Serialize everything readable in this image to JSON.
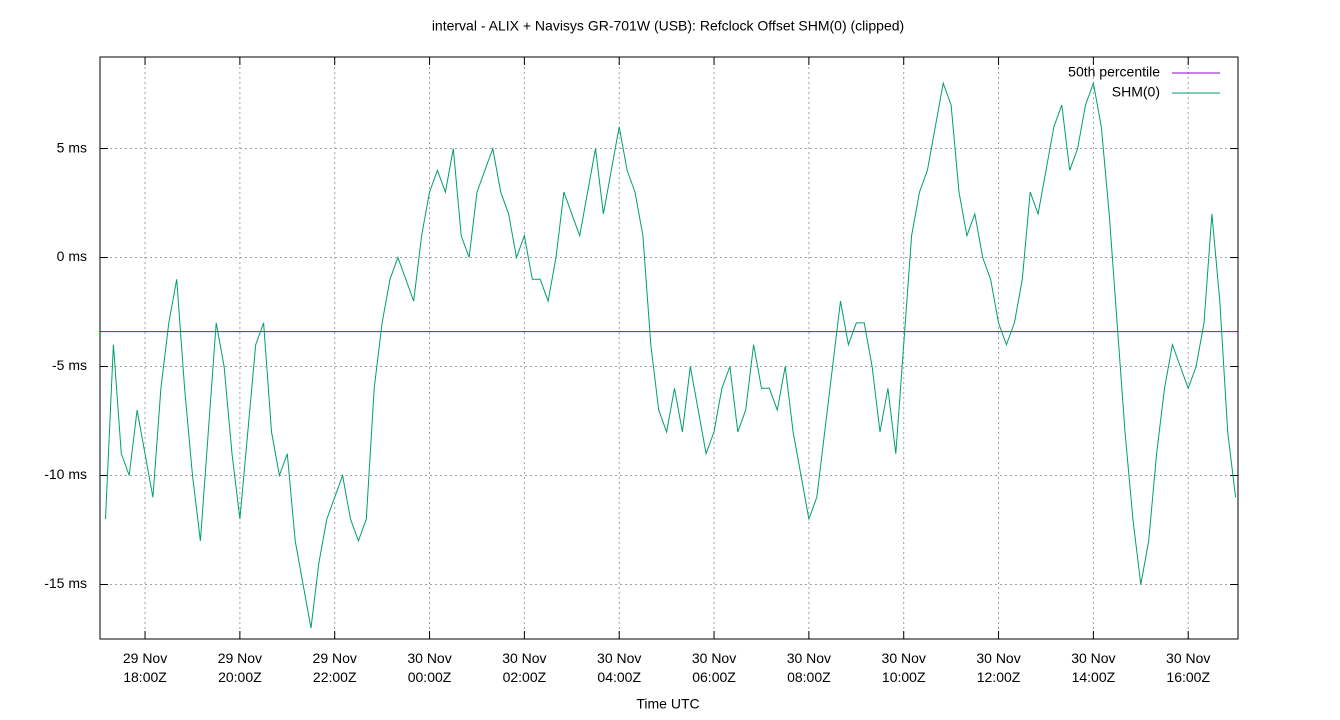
{
  "chart_data": {
    "type": "line",
    "title": "interval - ALIX + Navisys GR-701W (USB): Refclock Offset SHM(0) (clipped)",
    "x_label": "Time UTC",
    "xlim": [
      "29 Nov 17:03",
      "30 Nov 17:03"
    ],
    "xticks": [
      {
        "value": "29 Nov 18:00",
        "label": "29 Nov 18:00Z"
      },
      {
        "value": "29 Nov 20:00",
        "label": "29 Nov 20:00Z"
      },
      {
        "value": "29 Nov 22:00",
        "label": "29 Nov 22:00Z"
      },
      {
        "value": "30 Nov 00:00",
        "label": "30 Nov 00:00Z"
      },
      {
        "value": "30 Nov 02:00",
        "label": "30 Nov 02:00Z"
      },
      {
        "value": "30 Nov 04:00",
        "label": "30 Nov 04:00Z"
      },
      {
        "value": "30 Nov 06:00",
        "label": "30 Nov 06:00Z"
      },
      {
        "value": "30 Nov 08:00",
        "label": "30 Nov 08:00Z"
      },
      {
        "value": "30 Nov 10:00",
        "label": "30 Nov 10:00Z"
      },
      {
        "value": "30 Nov 12:00",
        "label": "30 Nov 12:00Z"
      },
      {
        "value": "30 Nov 14:00",
        "label": "30 Nov 14:00Z"
      },
      {
        "value": "30 Nov 16:00",
        "label": "30 Nov 16:00Z"
      }
    ],
    "ylim": [
      -17.5,
      9.2
    ],
    "yticks": [
      {
        "value": -15,
        "label": "-15 ms"
      },
      {
        "value": -10,
        "label": "-10 ms"
      },
      {
        "value": -5,
        "label": "-5 ms"
      },
      {
        "value": 0,
        "label": "0 ms"
      },
      {
        "value": 5,
        "label": "5 ms"
      }
    ],
    "grid": true,
    "legend": "top-right",
    "reference_line": {
      "name": "50th percentile",
      "color": "#9400d3",
      "value": -3.4
    },
    "x": [
      "29 Nov 17:10",
      "29 Nov 17:20",
      "29 Nov 17:30",
      "29 Nov 17:40",
      "29 Nov 17:50",
      "29 Nov 18:00",
      "29 Nov 18:10",
      "29 Nov 18:20",
      "29 Nov 18:30",
      "29 Nov 18:40",
      "29 Nov 18:50",
      "29 Nov 19:00",
      "29 Nov 19:10",
      "29 Nov 19:20",
      "29 Nov 19:30",
      "29 Nov 19:40",
      "29 Nov 19:50",
      "29 Nov 20:00",
      "29 Nov 20:10",
      "29 Nov 20:20",
      "29 Nov 20:30",
      "29 Nov 20:40",
      "29 Nov 20:50",
      "29 Nov 21:00",
      "29 Nov 21:10",
      "29 Nov 21:20",
      "29 Nov 21:30",
      "29 Nov 21:40",
      "29 Nov 21:50",
      "29 Nov 22:00",
      "29 Nov 22:10",
      "29 Nov 22:20",
      "29 Nov 22:30",
      "29 Nov 22:40",
      "29 Nov 22:50",
      "29 Nov 23:00",
      "29 Nov 23:10",
      "29 Nov 23:20",
      "29 Nov 23:30",
      "29 Nov 23:40",
      "29 Nov 23:50",
      "30 Nov 00:00",
      "30 Nov 00:10",
      "30 Nov 00:20",
      "30 Nov 00:30",
      "30 Nov 00:40",
      "30 Nov 00:50",
      "30 Nov 01:00",
      "30 Nov 01:10",
      "30 Nov 01:20",
      "30 Nov 01:30",
      "30 Nov 01:40",
      "30 Nov 01:50",
      "30 Nov 02:00",
      "30 Nov 02:10",
      "30 Nov 02:20",
      "30 Nov 02:30",
      "30 Nov 02:40",
      "30 Nov 02:50",
      "30 Nov 03:00",
      "30 Nov 03:10",
      "30 Nov 03:20",
      "30 Nov 03:30",
      "30 Nov 03:40",
      "30 Nov 03:50",
      "30 Nov 04:00",
      "30 Nov 04:10",
      "30 Nov 04:20",
      "30 Nov 04:30",
      "30 Nov 04:40",
      "30 Nov 04:50",
      "30 Nov 05:00",
      "30 Nov 05:10",
      "30 Nov 05:20",
      "30 Nov 05:30",
      "30 Nov 05:40",
      "30 Nov 05:50",
      "30 Nov 06:00",
      "30 Nov 06:10",
      "30 Nov 06:20",
      "30 Nov 06:30",
      "30 Nov 06:40",
      "30 Nov 06:50",
      "30 Nov 07:00",
      "30 Nov 07:10",
      "30 Nov 07:20",
      "30 Nov 07:30",
      "30 Nov 07:40",
      "30 Nov 07:50",
      "30 Nov 08:00",
      "30 Nov 08:10",
      "30 Nov 08:20",
      "30 Nov 08:30",
      "30 Nov 08:40",
      "30 Nov 08:50",
      "30 Nov 09:00",
      "30 Nov 09:10",
      "30 Nov 09:20",
      "30 Nov 09:30",
      "30 Nov 09:40",
      "30 Nov 09:50",
      "30 Nov 10:00",
      "30 Nov 10:10",
      "30 Nov 10:20",
      "30 Nov 10:30",
      "30 Nov 10:40",
      "30 Nov 10:50",
      "30 Nov 11:00",
      "30 Nov 11:10",
      "30 Nov 11:20",
      "30 Nov 11:30",
      "30 Nov 11:40",
      "30 Nov 11:50",
      "30 Nov 12:00",
      "30 Nov 12:10",
      "30 Nov 12:20",
      "30 Nov 12:30",
      "30 Nov 12:40",
      "30 Nov 12:50",
      "30 Nov 13:00",
      "30 Nov 13:10",
      "30 Nov 13:20",
      "30 Nov 13:30",
      "30 Nov 13:40",
      "30 Nov 13:50",
      "30 Nov 14:00",
      "30 Nov 14:10",
      "30 Nov 14:20",
      "30 Nov 14:30",
      "30 Nov 14:40",
      "30 Nov 14:50",
      "30 Nov 15:00",
      "30 Nov 15:10",
      "30 Nov 15:20",
      "30 Nov 15:30",
      "30 Nov 15:40",
      "30 Nov 15:50",
      "30 Nov 16:00",
      "30 Nov 16:10",
      "30 Nov 16:20",
      "30 Nov 16:30",
      "30 Nov 16:40",
      "30 Nov 16:50",
      "30 Nov 17:00"
    ],
    "series": [
      {
        "name": "SHM(0)",
        "color": "#009e73",
        "values": [
          -12,
          -4,
          -9,
          -10,
          -7,
          -9,
          -11,
          -6,
          -3,
          -1,
          -6,
          -10,
          -13,
          -8,
          -3,
          -5,
          -9,
          -12,
          -8,
          -4,
          -3,
          -8,
          -10,
          -9,
          -13,
          -15,
          -17,
          -14,
          -12,
          -11,
          -10,
          -12,
          -13,
          -12,
          -6,
          -3,
          -1,
          0,
          -1,
          -2,
          1,
          3,
          4,
          3,
          5,
          1,
          0,
          3,
          4,
          5,
          3,
          2,
          0,
          1,
          -1,
          -1,
          -2,
          0,
          3,
          2,
          1,
          3,
          5,
          2,
          4,
          6,
          4,
          3,
          1,
          -4,
          -7,
          -8,
          -6,
          -8,
          -5,
          -7,
          -9,
          -8,
          -6,
          -5,
          -8,
          -7,
          -4,
          -6,
          -6,
          -7,
          -5,
          -8,
          -10,
          -12,
          -11,
          -8,
          -5,
          -2,
          -4,
          -3,
          -3,
          -5,
          -8,
          -6,
          -9,
          -4,
          1,
          3,
          4,
          6,
          8,
          7,
          3,
          1,
          2,
          0,
          -1,
          -3,
          -4,
          -3,
          -1,
          3,
          2,
          4,
          6,
          7,
          4,
          5,
          7,
          8,
          6,
          2,
          -3,
          -8,
          -12,
          -15,
          -13,
          -9,
          -6,
          -4,
          -5,
          -6,
          -5,
          -3,
          2,
          -2,
          -8,
          -11
        ]
      }
    ]
  }
}
